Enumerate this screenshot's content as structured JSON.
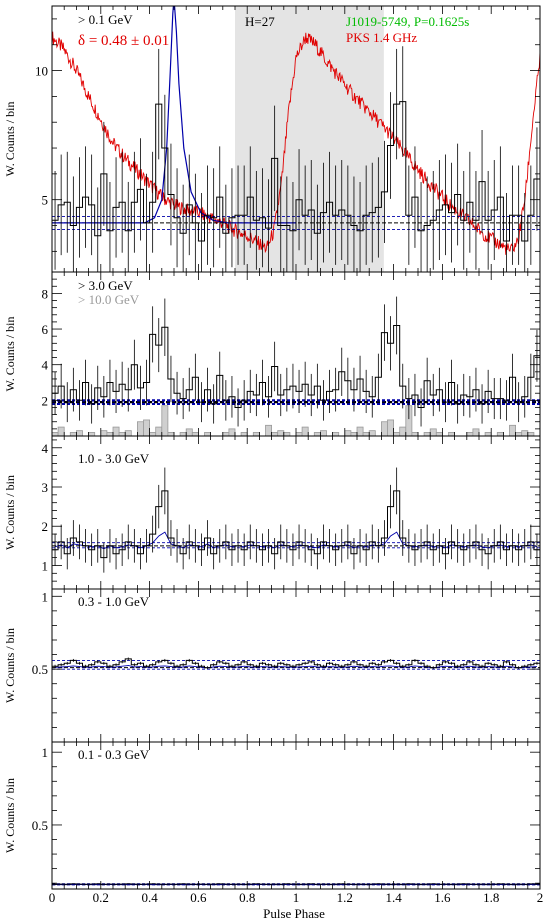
{
  "figure": {
    "xlabel": "Pulse Phase",
    "ylabel": "W. Counts / bin",
    "xticks": [
      "0",
      "0.2",
      "0.4",
      "0.6",
      "0.8",
      "1",
      "1.2",
      "1.4",
      "1.6",
      "1.8",
      "2"
    ]
  },
  "colors": {
    "radio": "#e00000",
    "model": "#0000aa",
    "pulsar_label": "#00bb00",
    "highlight": "#e4e4e4",
    "hist": "#000000",
    "hist_10gev": "#999999"
  },
  "chart_data": [
    {
      "type": "line",
      "panel": "panel-gt-0.1-gev",
      "labels": {
        "energy": "> 0.1 GeV",
        "delta": "δ = 0.48 ± 0.01",
        "harmonics": "H=27",
        "pulsar": "J1019-5749, P=0.1625s",
        "radio": "PKS 1.4 GHz"
      },
      "xlim": [
        0,
        2
      ],
      "ylim": [
        2.2,
        12.5
      ],
      "yticks": [
        5,
        10
      ],
      "shaded_phase": [
        0.75,
        1.36
      ],
      "background_level": 4.1,
      "background_band": [
        3.85,
        4.35
      ],
      "counts": [
        4.2,
        4.8,
        4.9,
        4.0,
        4.7,
        5.1,
        4.8,
        3.6,
        6.0,
        3.8,
        4.7,
        4.9,
        3.8,
        4.9,
        5.4,
        4.1,
        4.9,
        8.7,
        7.0,
        5.2,
        4.3,
        3.7,
        4.8,
        4.1,
        3.4,
        4.4,
        4.3,
        5.1,
        3.7,
        4.3,
        4.4,
        4.4,
        5.1,
        4.2,
        4.3,
        3.9,
        6.6,
        4.0,
        4.0,
        3.8,
        5.0,
        4.4,
        4.6,
        3.7,
        4.5,
        4.9,
        4.4,
        4.6,
        4.4,
        4.0,
        3.8,
        4.4,
        4.5,
        4.7,
        5.3,
        7.1,
        8.7,
        8.8,
        4.4,
        5.1,
        3.8,
        4.0,
        4.2,
        4.6,
        4.8,
        4.5,
        5.2,
        4.2,
        4.9,
        4.2,
        5.7,
        4.2,
        4.6,
        5.1,
        3.4,
        4.4,
        4.4,
        3.4,
        4.4,
        5.8
      ],
      "radio_profile": [
        [
          0.0,
          11.3
        ],
        [
          0.05,
          10.8
        ],
        [
          0.1,
          10.0
        ],
        [
          0.15,
          9.0
        ],
        [
          0.2,
          8.1
        ],
        [
          0.25,
          7.2
        ],
        [
          0.3,
          6.6
        ],
        [
          0.35,
          6.1
        ],
        [
          0.4,
          5.6
        ],
        [
          0.45,
          5.1
        ],
        [
          0.5,
          4.8
        ],
        [
          0.55,
          4.6
        ],
        [
          0.6,
          4.5
        ],
        [
          0.65,
          4.3
        ],
        [
          0.7,
          4.1
        ],
        [
          0.75,
          3.8
        ],
        [
          0.8,
          3.6
        ],
        [
          0.85,
          3.3
        ],
        [
          0.88,
          3.1
        ],
        [
          0.91,
          3.8
        ],
        [
          0.94,
          5.6
        ],
        [
          0.97,
          8.4
        ],
        [
          1.0,
          10.5
        ],
        [
          1.04,
          11.3
        ],
        [
          1.08,
          11.0
        ],
        [
          1.13,
          10.3
        ],
        [
          1.18,
          9.7
        ],
        [
          1.23,
          9.1
        ],
        [
          1.28,
          8.6
        ],
        [
          1.33,
          8.1
        ],
        [
          1.38,
          7.6
        ],
        [
          1.43,
          7.0
        ],
        [
          1.48,
          6.4
        ],
        [
          1.53,
          5.8
        ],
        [
          1.58,
          5.3
        ],
        [
          1.63,
          4.8
        ],
        [
          1.68,
          4.4
        ],
        [
          1.73,
          4.0
        ],
        [
          1.78,
          3.6
        ],
        [
          1.83,
          3.3
        ],
        [
          1.88,
          3.0
        ],
        [
          1.91,
          3.4
        ],
        [
          1.94,
          5.2
        ],
        [
          1.97,
          8.0
        ],
        [
          2.0,
          10.5
        ]
      ],
      "model_profile": [
        [
          0.0,
          4.1
        ],
        [
          0.38,
          4.1
        ],
        [
          0.42,
          4.3
        ],
        [
          0.45,
          5.0
        ],
        [
          0.47,
          7.0
        ],
        [
          0.485,
          10.0
        ],
        [
          0.495,
          12.2
        ],
        [
          0.5,
          12.8
        ],
        [
          0.51,
          11.5
        ],
        [
          0.52,
          9.5
        ],
        [
          0.54,
          7.0
        ],
        [
          0.57,
          5.3
        ],
        [
          0.61,
          4.5
        ],
        [
          0.66,
          4.2
        ],
        [
          0.72,
          4.1
        ],
        [
          1.0,
          4.1
        ]
      ]
    },
    {
      "type": "line",
      "panel": "panel-gt-3-gev",
      "labels": {
        "energy": "> 3.0 GeV",
        "energy_high": "> 10.0 GeV"
      },
      "xlim": [
        0,
        2
      ],
      "ylim": [
        0,
        9.2
      ],
      "yticks": [
        2,
        4,
        6,
        8
      ],
      "background_level": 1.9,
      "background_band": [
        1.8,
        2.0
      ],
      "counts": [
        2.4,
        2.8,
        1.9,
        2.6,
        2.0,
        3.0,
        1.8,
        2.7,
        2.2,
        3.0,
        2.5,
        2.9,
        2.6,
        4.0,
        2.7,
        3.0,
        5.7,
        5.1,
        6.1,
        3.2,
        2.4,
        2.1,
        2.6,
        3.3,
        1.9,
        2.6,
        1.8,
        3.4,
        2.0,
        2.2,
        1.6,
        2.0,
        2.5,
        2.3,
        3.0,
        2.2,
        3.9,
        2.3,
        2.6,
        2.8,
        2.5,
        2.9,
        2.3,
        2.8,
        2.0,
        2.5,
        2.6,
        3.6,
        3.1,
        2.6,
        3.2,
        2.5,
        2.2,
        3.3,
        5.8,
        5.2,
        6.2,
        2.8,
        2.1,
        2.3,
        1.6,
        3.1,
        2.3,
        2.6,
        1.9,
        3.0,
        1.8,
        2.3,
        2.2,
        2.6,
        1.8,
        2.5,
        2.1,
        2.1,
        2.0,
        3.3,
        1.9,
        2.2,
        3.3,
        4.5
      ],
      "counts_high": [
        0.2,
        0.5,
        0.0,
        0.2,
        0.3,
        0.0,
        0.2,
        0.0,
        0.3,
        0.2,
        0.5,
        0.2,
        0.3,
        0.0,
        0.8,
        0.9,
        0.2,
        0.5,
        1.7,
        0.2,
        0.0,
        0.2,
        0.4,
        0.2,
        0.0,
        0.2,
        0.0,
        0.0,
        0.2,
        0.4,
        0.0,
        0.2,
        0.0,
        0.2,
        0.0,
        0.6,
        0.2,
        0.3,
        0.2,
        0.0,
        0.2,
        0.5,
        0.0,
        0.2,
        0.3,
        0.0,
        0.2,
        0.0,
        0.3,
        0.2,
        0.5,
        0.2,
        0.3,
        0.0,
        0.8,
        0.9,
        0.2,
        0.5,
        1.7,
        0.2,
        0.0,
        0.2,
        0.4,
        0.2,
        0.0,
        0.2,
        0.0,
        0.0,
        0.2,
        0.4,
        0.0,
        0.2,
        0.0,
        0.2,
        0.0,
        0.6,
        0.2,
        0.3,
        0.2,
        0.0
      ]
    },
    {
      "type": "line",
      "panel": "panel-1-3-gev",
      "labels": {
        "energy": "1.0 - 3.0 GeV"
      },
      "xlim": [
        0,
        2
      ],
      "ylim": [
        0.4,
        4.3
      ],
      "yticks": [
        1,
        2,
        3,
        4
      ],
      "background_level": 1.5,
      "background_band": [
        1.45,
        1.58
      ],
      "counts": [
        1.4,
        1.6,
        1.3,
        1.7,
        1.6,
        1.5,
        1.4,
        1.5,
        1.2,
        1.5,
        1.3,
        1.4,
        1.6,
        1.5,
        1.3,
        1.5,
        1.8,
        2.5,
        2.9,
        1.7,
        1.5,
        1.3,
        1.6,
        1.5,
        1.4,
        1.7,
        1.3,
        1.5,
        1.6,
        1.4,
        1.5,
        1.4,
        1.6,
        1.5,
        1.4,
        1.5,
        1.3,
        1.6,
        1.5,
        1.4,
        1.6,
        1.5,
        1.4,
        1.3,
        1.6,
        1.5,
        1.4,
        1.5,
        1.6,
        1.3,
        1.5,
        1.4,
        1.6,
        1.5,
        1.7,
        2.5,
        2.9,
        1.7,
        1.5,
        1.4,
        1.5,
        1.6,
        1.4,
        1.5,
        1.3,
        1.6,
        1.5,
        1.4,
        1.5,
        1.6,
        1.4,
        1.3,
        1.5,
        1.6,
        1.4,
        1.5,
        1.4,
        1.5,
        1.6,
        1.4
      ]
    },
    {
      "type": "line",
      "panel": "panel-0.3-1-gev",
      "labels": {
        "energy": "0.3 - 1.0 GeV"
      },
      "xlim": [
        0,
        2
      ],
      "ylim": [
        0.0,
        1.05
      ],
      "yticks": [
        0.5,
        1
      ],
      "background_level": 0.51,
      "background_band": [
        0.5,
        0.56
      ],
      "counts": [
        0.52,
        0.53,
        0.54,
        0.56,
        0.54,
        0.52,
        0.53,
        0.55,
        0.54,
        0.52,
        0.53,
        0.55,
        0.57,
        0.53,
        0.54,
        0.52,
        0.53,
        0.55,
        0.56,
        0.54,
        0.52,
        0.53,
        0.56,
        0.54,
        0.52,
        0.51,
        0.53,
        0.55,
        0.54,
        0.52,
        0.53,
        0.55,
        0.53,
        0.52,
        0.54,
        0.53,
        0.52,
        0.54,
        0.53,
        0.52,
        0.53,
        0.54,
        0.55,
        0.53,
        0.52,
        0.54,
        0.53,
        0.52,
        0.53,
        0.55,
        0.53,
        0.52,
        0.54,
        0.53,
        0.55,
        0.56,
        0.54,
        0.52,
        0.53,
        0.56,
        0.54,
        0.52,
        0.51,
        0.53,
        0.55,
        0.54,
        0.52,
        0.53,
        0.55,
        0.53,
        0.52,
        0.54,
        0.53,
        0.52,
        0.55,
        0.53,
        0.51,
        0.52,
        0.53,
        0.54
      ]
    },
    {
      "type": "line",
      "panel": "panel-0.1-0.3-gev",
      "labels": {
        "energy": "0.1 - 0.3 GeV"
      },
      "xlim": [
        0,
        2
      ],
      "ylim": [
        0.06,
        1.07
      ],
      "yticks": [
        0.5,
        1
      ],
      "background_level": 0.09,
      "background_band": [
        0.088,
        0.096
      ],
      "counts": [
        0.093,
        0.094,
        0.093,
        0.095,
        0.094,
        0.093,
        0.094,
        0.095,
        0.093,
        0.094,
        0.093,
        0.094,
        0.095,
        0.094,
        0.093,
        0.094,
        0.095,
        0.094,
        0.093,
        0.094,
        0.093,
        0.095,
        0.094,
        0.093,
        0.094,
        0.093,
        0.094,
        0.095,
        0.094,
        0.093,
        0.094,
        0.093,
        0.094,
        0.095,
        0.094,
        0.093,
        0.094,
        0.093,
        0.095,
        0.094,
        0.093,
        0.094,
        0.095,
        0.093,
        0.094,
        0.093,
        0.094,
        0.095,
        0.094,
        0.093,
        0.094,
        0.093,
        0.094,
        0.095,
        0.094,
        0.093,
        0.094,
        0.093,
        0.095,
        0.094,
        0.093,
        0.094,
        0.095,
        0.093,
        0.094,
        0.093,
        0.094,
        0.095,
        0.094,
        0.093,
        0.094,
        0.093,
        0.094,
        0.095,
        0.094,
        0.093,
        0.094,
        0.093,
        0.095,
        0.094
      ]
    }
  ]
}
